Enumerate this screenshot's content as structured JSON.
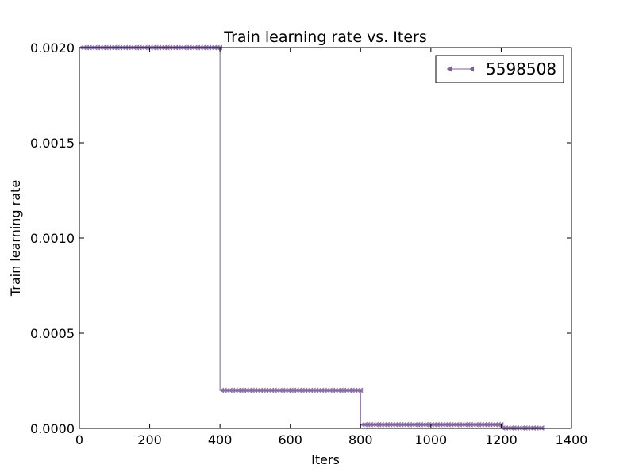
{
  "chart_data": {
    "type": "line",
    "title": "Train learning rate  vs. Iters",
    "xlabel": "Iters",
    "ylabel": "Train learning rate",
    "xlim": [
      0,
      1400
    ],
    "ylim": [
      0,
      0.002
    ],
    "xticks": [
      0,
      200,
      400,
      600,
      800,
      1000,
      1200,
      1400
    ],
    "xtick_labels": [
      "0",
      "200",
      "400",
      "600",
      "800",
      "1000",
      "1200",
      "1400"
    ],
    "yticks": [
      0,
      0.0005,
      0.001,
      0.0015,
      0.002
    ],
    "ytick_labels": [
      "0.0000",
      "0.0005",
      "0.0010",
      "0.0015",
      "0.0020"
    ],
    "grid": false,
    "legend_position": "top-right",
    "series": [
      {
        "name": "5598508",
        "color": "#7f5f9a",
        "marker": "triangle-left",
        "segments": [
          {
            "x_start": 0,
            "x_end": 400,
            "y": 0.002
          },
          {
            "x_start": 400,
            "x_end": 800,
            "y": 0.0002
          },
          {
            "x_start": 800,
            "x_end": 1200,
            "y": 2e-05
          },
          {
            "x_start": 1200,
            "x_end": 1320,
            "y": 2e-06
          }
        ]
      }
    ]
  }
}
